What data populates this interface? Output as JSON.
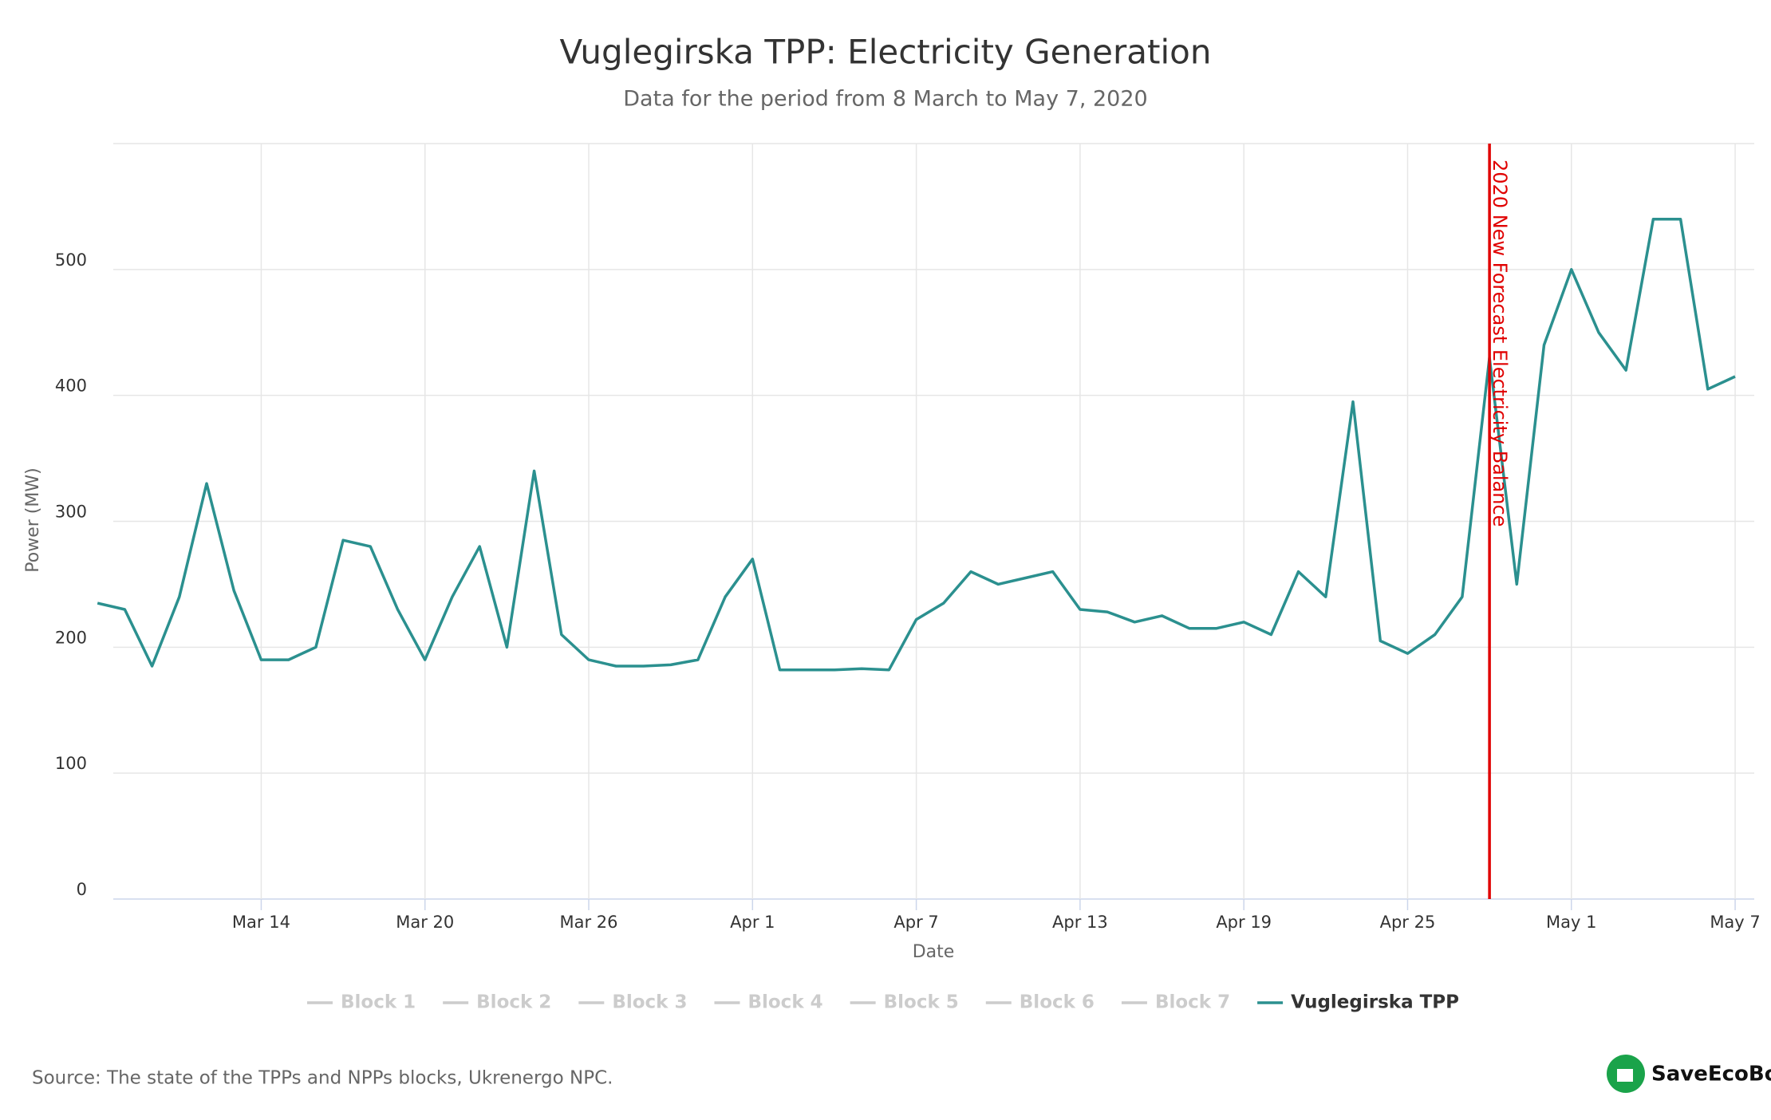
{
  "chart_data": {
    "type": "line",
    "title": "Vuglegirska TPP: Electricity Generation",
    "subtitle": "Data for the period from 8 March to May 7, 2020",
    "x_label": "Date",
    "y_label": "Power (MW)",
    "source": "Source: The state of the TPPs and NPPs blocks, Ukrenergo NPC.",
    "logo": "SaveEcoBot",
    "x": [
      "Mar 8",
      "Mar 9",
      "Mar 10",
      "Mar 11",
      "Mar 12",
      "Mar 13",
      "Mar 14",
      "Mar 15",
      "Mar 16",
      "Mar 17",
      "Mar 18",
      "Mar 19",
      "Mar 20",
      "Mar 21",
      "Mar 22",
      "Mar 23",
      "Mar 24",
      "Mar 25",
      "Mar 26",
      "Mar 27",
      "Mar 28",
      "Mar 29",
      "Mar 30",
      "Mar 31",
      "Apr 1",
      "Apr 2",
      "Apr 3",
      "Apr 4",
      "Apr 5",
      "Apr 6",
      "Apr 7",
      "Apr 8",
      "Apr 9",
      "Apr 10",
      "Apr 11",
      "Apr 12",
      "Apr 13",
      "Apr 14",
      "Apr 15",
      "Apr 16",
      "Apr 17",
      "Apr 18",
      "Apr 19",
      "Apr 20",
      "Apr 21",
      "Apr 22",
      "Apr 23",
      "Apr 24",
      "Apr 25",
      "Apr 26",
      "Apr 27",
      "Apr 28",
      "Apr 29",
      "Apr 30",
      "May 1",
      "May 2",
      "May 3",
      "May 4",
      "May 5",
      "May 6",
      "May 7"
    ],
    "xlim": [
      "Mar 8",
      "May 7"
    ],
    "xticks": [
      "Mar 14",
      "Mar 20",
      "Mar 26",
      "Apr 1",
      "Apr 7",
      "Apr 13",
      "Apr 19",
      "Apr 25",
      "May 1",
      "May 7"
    ],
    "ylim": [
      0,
      600
    ],
    "yticks": [
      0,
      100,
      200,
      300,
      400,
      500
    ],
    "grid": true,
    "series": [
      {
        "name": "Block 1",
        "color": "#cccccc",
        "visible": false
      },
      {
        "name": "Block 2",
        "color": "#cccccc",
        "visible": false
      },
      {
        "name": "Block 3",
        "color": "#cccccc",
        "visible": false
      },
      {
        "name": "Block 4",
        "color": "#cccccc",
        "visible": false
      },
      {
        "name": "Block 5",
        "color": "#cccccc",
        "visible": false
      },
      {
        "name": "Block 6",
        "color": "#cccccc",
        "visible": false
      },
      {
        "name": "Block 7",
        "color": "#cccccc",
        "visible": false
      },
      {
        "name": "Vuglegirska TPP",
        "color": "#2b908f",
        "visible": true,
        "values": [
          235,
          230,
          185,
          240,
          330,
          245,
          190,
          190,
          200,
          285,
          280,
          230,
          190,
          240,
          280,
          200,
          340,
          210,
          190,
          185,
          185,
          186,
          190,
          240,
          270,
          182,
          182,
          182,
          183,
          182,
          222,
          235,
          260,
          250,
          255,
          260,
          230,
          228,
          220,
          225,
          215,
          215,
          220,
          210,
          260,
          240,
          395,
          205,
          195,
          210,
          240,
          430,
          250,
          440,
          500,
          450,
          420,
          540,
          540,
          405,
          415
        ]
      }
    ],
    "annotations": [
      {
        "x": "Apr 28",
        "text": "2020 New Forecast Electricity Balance",
        "color": "#e00000"
      }
    ]
  }
}
